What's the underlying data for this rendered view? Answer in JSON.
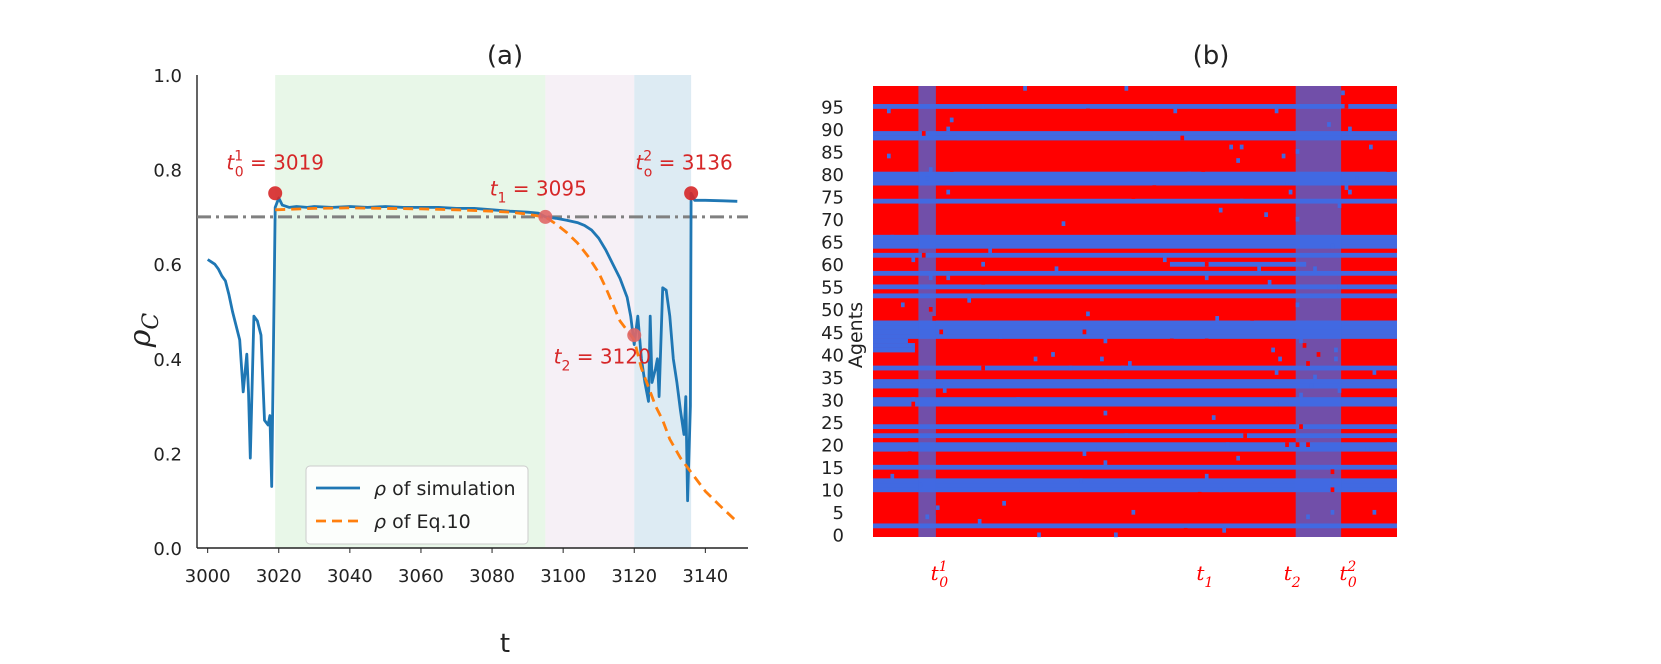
{
  "chart_data": [
    {
      "panel": "(a)",
      "type": "line",
      "title": "(a)",
      "xlabel": "t",
      "ylabel": "ρ_C",
      "ylabel_main": "ρ",
      "ylabel_sub": "C",
      "xlim": [
        2997,
        3152
      ],
      "ylim": [
        0.0,
        1.0
      ],
      "xticks": [
        3000,
        3020,
        3040,
        3060,
        3080,
        3100,
        3120,
        3140
      ],
      "yticks": [
        "0.0",
        "0.2",
        "0.4",
        "0.6",
        "0.8",
        "1.0"
      ],
      "bands": [
        {
          "from": 3019,
          "to": 3095,
          "color": "#e8f7e8"
        },
        {
          "from": 3095,
          "to": 3120,
          "color": "#f6f0f6"
        },
        {
          "from": 3120,
          "to": 3136,
          "color": "#ddebf3"
        }
      ],
      "threshold": {
        "y": 0.7,
        "color": "#808080"
      },
      "series": [
        {
          "name": "ρ of simulation",
          "color": "#1f77b4",
          "style": "solid",
          "points": [
            [
              3000,
              0.61
            ],
            [
              3001,
              0.605
            ],
            [
              3002,
              0.6
            ],
            [
              3003,
              0.59
            ],
            [
              3004,
              0.575
            ],
            [
              3005,
              0.565
            ],
            [
              3006,
              0.535
            ],
            [
              3007,
              0.5
            ],
            [
              3008,
              0.47
            ],
            [
              3009,
              0.44
            ],
            [
              3010,
              0.33
            ],
            [
              3011,
              0.41
            ],
            [
              3011.5,
              0.33
            ],
            [
              3012,
              0.19
            ],
            [
              3013,
              0.49
            ],
            [
              3014,
              0.48
            ],
            [
              3015,
              0.45
            ],
            [
              3016,
              0.27
            ],
            [
              3017,
              0.26
            ],
            [
              3017.5,
              0.28
            ],
            [
              3018,
              0.13
            ],
            [
              3019,
              0.72
            ],
            [
              3020,
              0.74
            ],
            [
              3021,
              0.725
            ],
            [
              3023,
              0.72
            ],
            [
              3025,
              0.722
            ],
            [
              3028,
              0.72
            ],
            [
              3030,
              0.722
            ],
            [
              3035,
              0.72
            ],
            [
              3040,
              0.722
            ],
            [
              3045,
              0.72
            ],
            [
              3050,
              0.722
            ],
            [
              3055,
              0.72
            ],
            [
              3060,
              0.72
            ],
            [
              3065,
              0.72
            ],
            [
              3070,
              0.718
            ],
            [
              3075,
              0.718
            ],
            [
              3080,
              0.715
            ],
            [
              3085,
              0.712
            ],
            [
              3090,
              0.71
            ],
            [
              3093,
              0.708
            ],
            [
              3095,
              0.7
            ],
            [
              3098,
              0.697
            ],
            [
              3101,
              0.693
            ],
            [
              3104,
              0.688
            ],
            [
              3106,
              0.682
            ],
            [
              3108,
              0.672
            ],
            [
              3110,
              0.655
            ],
            [
              3112,
              0.63
            ],
            [
              3114,
              0.6
            ],
            [
              3116,
              0.57
            ],
            [
              3118,
              0.53
            ],
            [
              3119,
              0.49
            ],
            [
              3120,
              0.43
            ],
            [
              3121,
              0.49
            ],
            [
              3122,
              0.4
            ],
            [
              3123,
              0.35
            ],
            [
              3124,
              0.31
            ],
            [
              3124.5,
              0.49
            ],
            [
              3125,
              0.35
            ],
            [
              3126,
              0.38
            ],
            [
              3126.5,
              0.4
            ],
            [
              3127,
              0.32
            ],
            [
              3128,
              0.55
            ],
            [
              3129,
              0.545
            ],
            [
              3130,
              0.49
            ],
            [
              3131,
              0.4
            ],
            [
              3132,
              0.35
            ],
            [
              3133,
              0.29
            ],
            [
              3134,
              0.24
            ],
            [
              3134.5,
              0.32
            ],
            [
              3135,
              0.1
            ],
            [
              3135.8,
              0.3
            ],
            [
              3136,
              0.75
            ],
            [
              3137,
              0.735
            ],
            [
              3140,
              0.735
            ],
            [
              3145,
              0.734
            ],
            [
              3149,
              0.733
            ]
          ]
        },
        {
          "name": "ρ of  Eq.10",
          "color": "#ff7f0e",
          "style": "dashed",
          "points": [
            [
              3019,
              0.715
            ],
            [
              3030,
              0.718
            ],
            [
              3040,
              0.719
            ],
            [
              3050,
              0.718
            ],
            [
              3060,
              0.717
            ],
            [
              3070,
              0.715
            ],
            [
              3080,
              0.712
            ],
            [
              3085,
              0.71
            ],
            [
              3090,
              0.706
            ],
            [
              3093,
              0.702
            ],
            [
              3095,
              0.7
            ],
            [
              3098,
              0.685
            ],
            [
              3101,
              0.667
            ],
            [
              3104,
              0.645
            ],
            [
              3107,
              0.617
            ],
            [
              3110,
              0.582
            ],
            [
              3112,
              0.55
            ],
            [
              3114,
              0.515
            ],
            [
              3116,
              0.48
            ],
            [
              3118,
              0.46
            ],
            [
              3120,
              0.44
            ],
            [
              3122,
              0.38
            ],
            [
              3124,
              0.34
            ],
            [
              3126,
              0.3
            ],
            [
              3128,
              0.27
            ],
            [
              3130,
              0.23
            ],
            [
              3133,
              0.19
            ],
            [
              3136,
              0.16
            ],
            [
              3140,
              0.12
            ],
            [
              3144,
              0.09
            ],
            [
              3149,
              0.055
            ]
          ]
        }
      ],
      "markers": [
        {
          "x": 3019,
          "y": 0.75,
          "color": "#d62728"
        },
        {
          "x": 3095,
          "y": 0.7,
          "color": "#e06666"
        },
        {
          "x": 3120,
          "y": 0.45,
          "color": "#e06666"
        },
        {
          "x": 3136,
          "y": 0.75,
          "color": "#d62728"
        }
      ],
      "annotations": [
        {
          "name": "t0-1",
          "sym": "t",
          "sub": "0",
          "sup": "1",
          "eq": " = 3019",
          "x": 3019,
          "y": 0.8
        },
        {
          "name": "t1",
          "sym": "t",
          "sub": "1",
          "sup": "",
          "eq": " = 3095",
          "x": 3093,
          "y": 0.745
        },
        {
          "name": "t2",
          "sym": "t",
          "sub": "2",
          "sup": "",
          "eq": " = 3120",
          "x": 3111,
          "y": 0.39
        },
        {
          "name": "t0-2",
          "sym": "t",
          "sub": "o",
          "sup": "2",
          "eq": " = 3136",
          "x": 3134,
          "y": 0.8
        }
      ],
      "legend": {
        "position": "lower-center",
        "entries": [
          "ρ of simulation",
          "ρ of  Eq.10"
        ]
      }
    },
    {
      "panel": "(b)",
      "type": "heatmap",
      "title": "(b)",
      "ylabel": "Agents",
      "yticks": [
        "0",
        "5",
        "10",
        "15",
        "20",
        "25",
        "30",
        "35",
        "40",
        "45",
        "50",
        "55",
        "60",
        "65",
        "70",
        "75",
        "80",
        "85",
        "90",
        "95"
      ],
      "n_agents": 100,
      "n_steps": 150,
      "t_start": 3000,
      "colors": {
        "cooperator": "#ff0000",
        "defector": "#4169e1"
      },
      "blue_rows": [
        2,
        10,
        11,
        12,
        15,
        19,
        20,
        22,
        24,
        29,
        30,
        33,
        34,
        37,
        44,
        45,
        46,
        47,
        53,
        55,
        58,
        62,
        64,
        65,
        66,
        74,
        78,
        79,
        80,
        88,
        89,
        95
      ],
      "partial_rows": [
        {
          "row": 60,
          "from": 3085,
          "to": 3124
        },
        {
          "row": 42,
          "from": 3000,
          "to": 3012
        },
        {
          "row": 41,
          "from": 3000,
          "to": 3012
        },
        {
          "row": 43,
          "from": 3000,
          "to": 3010
        }
      ],
      "blue_columns": [
        {
          "from": 3013,
          "to": 3018
        },
        {
          "from": 3121,
          "to": 3134
        }
      ],
      "time_labels": [
        {
          "sym": "t",
          "sub": "0",
          "sup": "1",
          "t": 3019
        },
        {
          "sym": "t",
          "sub": "1",
          "sup": "",
          "t": 3095
        },
        {
          "sym": "t",
          "sub": "2",
          "sup": "",
          "t": 3120
        },
        {
          "sym": "t",
          "sub": "0",
          "sup": "2",
          "t": 3136
        }
      ]
    }
  ]
}
